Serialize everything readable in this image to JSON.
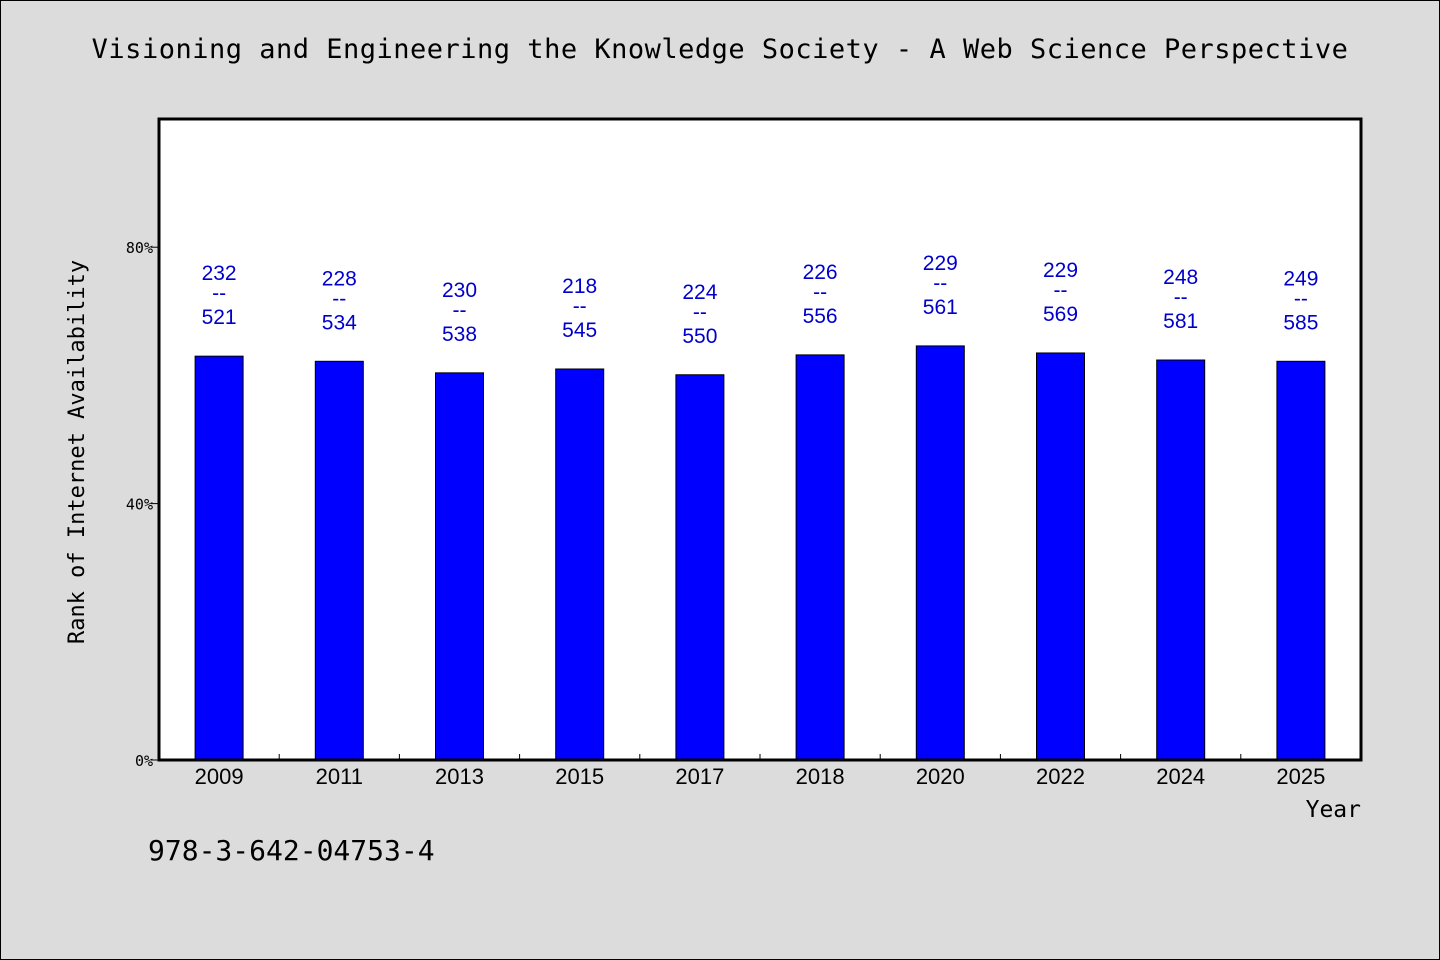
{
  "chart_data": {
    "type": "bar",
    "title": "Visioning and Engineering the Knowledge Society - A Web Science Perspective",
    "xlabel": "Year",
    "ylabel": "Rank of Internet Availability",
    "categories": [
      "2009",
      "2011",
      "2013",
      "2015",
      "2017",
      "2018",
      "2020",
      "2022",
      "2024",
      "2025"
    ],
    "values": [
      63.0,
      62.2,
      60.4,
      61.0,
      60.1,
      63.2,
      64.6,
      63.5,
      62.4,
      62.2
    ],
    "bar_labels": [
      {
        "top": "232",
        "sep": "--",
        "bottom": "521"
      },
      {
        "top": "228",
        "sep": "--",
        "bottom": "534"
      },
      {
        "top": "230",
        "sep": "--",
        "bottom": "538"
      },
      {
        "top": "218",
        "sep": "--",
        "bottom": "545"
      },
      {
        "top": "224",
        "sep": "--",
        "bottom": "550"
      },
      {
        "top": "226",
        "sep": "--",
        "bottom": "556"
      },
      {
        "top": "229",
        "sep": "--",
        "bottom": "561"
      },
      {
        "top": "229",
        "sep": "--",
        "bottom": "569"
      },
      {
        "top": "248",
        "sep": "--",
        "bottom": "581"
      },
      {
        "top": "249",
        "sep": "--",
        "bottom": "585"
      }
    ],
    "yticks": [
      {
        "value": 0,
        "label": "0%"
      },
      {
        "value": 40,
        "label": "40%"
      },
      {
        "value": 80,
        "label": "80%"
      }
    ],
    "ylim": [
      0,
      100
    ],
    "grid": false,
    "legend": "none",
    "colors": {
      "bar": "#0000ff",
      "label": "#0000cc",
      "plot_bg": "#ffffff",
      "page_bg": "#dcdcdc"
    }
  },
  "footer": {
    "isbn": "978-3-642-04753-4"
  }
}
